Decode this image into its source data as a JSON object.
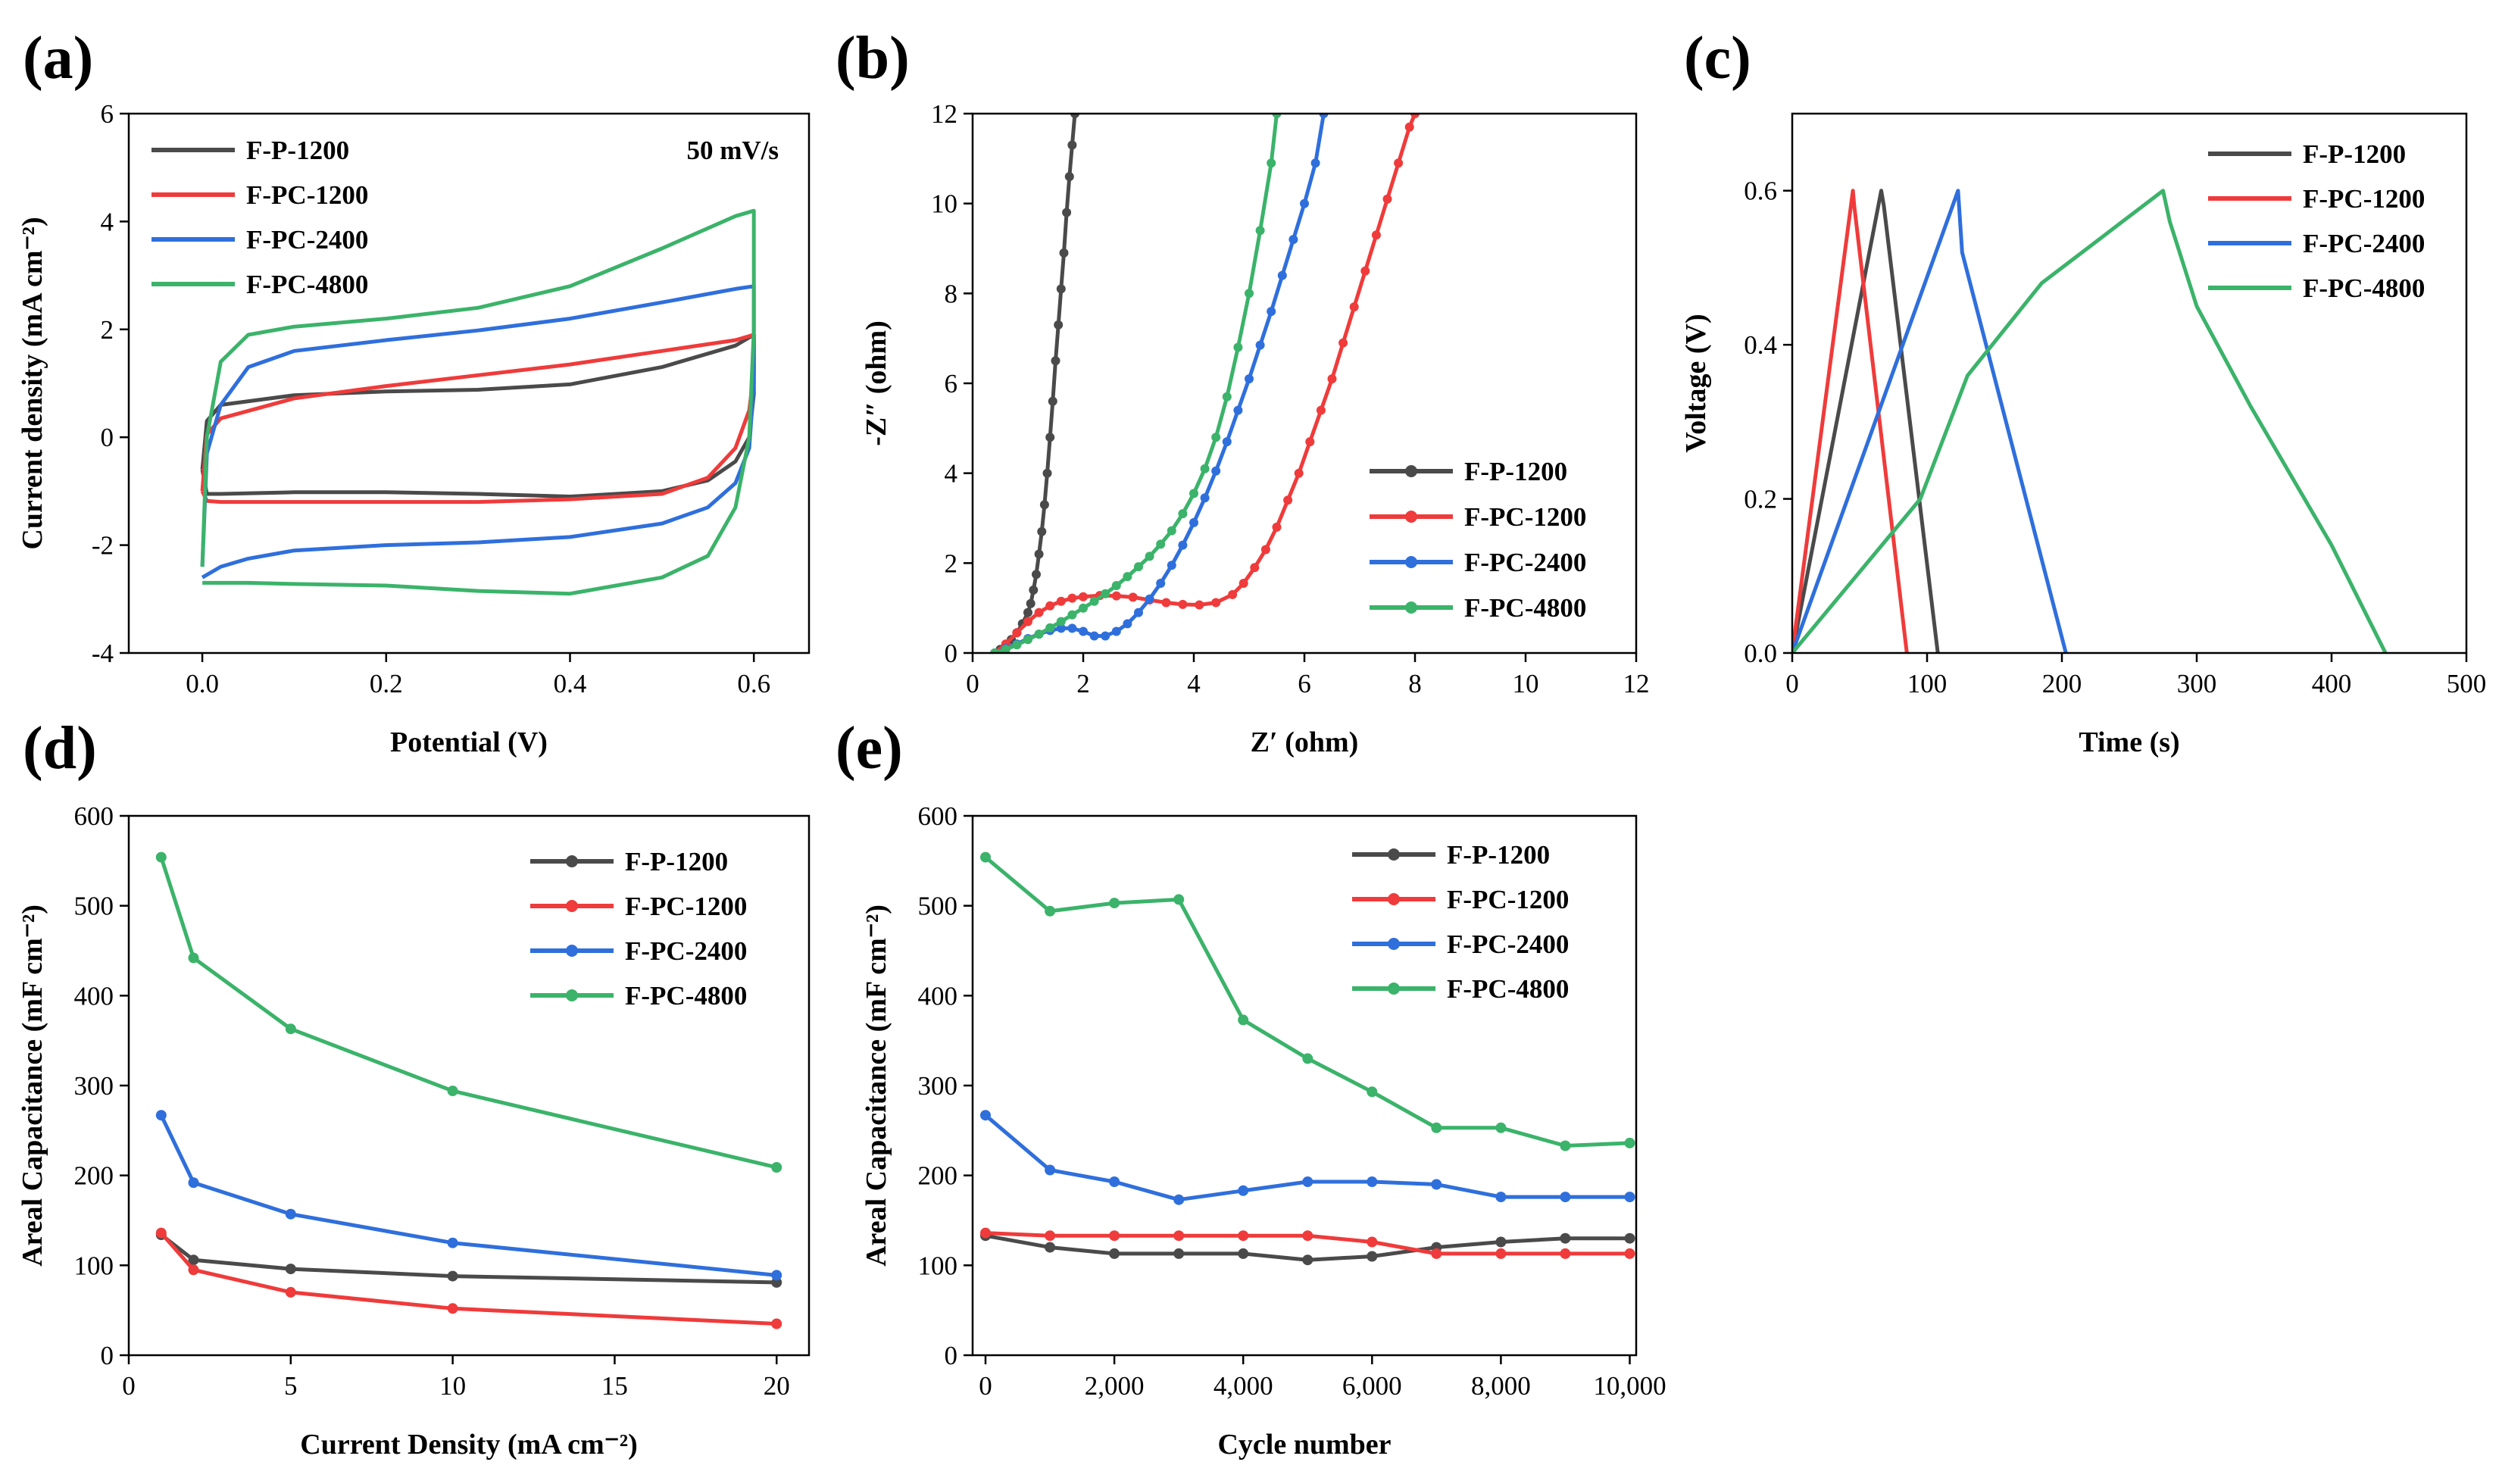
{
  "colors": {
    "F-P-1200": "#4a4a4a",
    "F-PC-1200": "#ef3b3b",
    "F-PC-2400": "#2f6fdc",
    "F-PC-4800": "#3bb36a"
  },
  "chart_data": [
    {
      "panel": "(a)",
      "type": "line",
      "title": "",
      "xlabel": "Potential (V)",
      "ylabel": "Current density (mA cm⁻²)",
      "xlim": [
        -0.08,
        0.66
      ],
      "ylim": [
        -4,
        6
      ],
      "xticks": [
        0.0,
        0.2,
        0.4,
        0.6
      ],
      "xtick_labels": [
        "0.0",
        "0.2",
        "0.4",
        "0.6"
      ],
      "yticks": [
        -4,
        -2,
        0,
        2,
        4,
        6
      ],
      "ytick_labels": [
        "-4",
        "-2",
        "0",
        "2",
        "4",
        "6"
      ],
      "annotation": "50 mV/s",
      "legend_position": "top-left",
      "series": [
        {
          "name": "F-P-1200",
          "x": [
            0.0,
            0.005,
            0.02,
            0.1,
            0.2,
            0.3,
            0.4,
            0.5,
            0.58,
            0.6,
            0.6,
            0.595,
            0.58,
            0.55,
            0.5,
            0.4,
            0.3,
            0.2,
            0.1,
            0.02,
            0.005,
            0.0
          ],
          "y": [
            -0.6,
            0.3,
            0.6,
            0.78,
            0.85,
            0.88,
            0.98,
            1.3,
            1.7,
            1.9,
            0.8,
            0.0,
            -0.45,
            -0.8,
            -1.0,
            -1.1,
            -1.05,
            -1.02,
            -1.02,
            -1.05,
            -1.05,
            -0.6
          ]
        },
        {
          "name": "F-PC-1200",
          "x": [
            0.0,
            0.005,
            0.02,
            0.1,
            0.2,
            0.3,
            0.4,
            0.5,
            0.58,
            0.6,
            0.6,
            0.595,
            0.58,
            0.55,
            0.5,
            0.4,
            0.3,
            0.2,
            0.1,
            0.02,
            0.005,
            0.0
          ],
          "y": [
            -1.0,
            0.05,
            0.35,
            0.72,
            0.95,
            1.15,
            1.35,
            1.6,
            1.8,
            1.9,
            1.2,
            0.5,
            -0.2,
            -0.75,
            -1.05,
            -1.15,
            -1.2,
            -1.2,
            -1.2,
            -1.2,
            -1.18,
            -1.0
          ]
        },
        {
          "name": "F-PC-2400",
          "x": [
            0.0,
            0.005,
            0.02,
            0.05,
            0.1,
            0.2,
            0.3,
            0.4,
            0.5,
            0.58,
            0.6,
            0.6,
            0.595,
            0.58,
            0.55,
            0.5,
            0.4,
            0.3,
            0.2,
            0.1,
            0.05,
            0.02,
            0.0
          ],
          "y": [
            -2.4,
            -0.3,
            0.6,
            1.3,
            1.6,
            1.8,
            1.98,
            2.2,
            2.5,
            2.75,
            2.8,
            1.0,
            -0.2,
            -0.85,
            -1.3,
            -1.6,
            -1.85,
            -1.95,
            -2.0,
            -2.1,
            -2.25,
            -2.4,
            -2.6
          ]
        },
        {
          "name": "F-PC-4800",
          "x": [
            0.0,
            0.005,
            0.02,
            0.05,
            0.1,
            0.2,
            0.3,
            0.4,
            0.5,
            0.58,
            0.6,
            0.6,
            0.595,
            0.58,
            0.55,
            0.5,
            0.4,
            0.3,
            0.2,
            0.1,
            0.05,
            0.02,
            0.0
          ],
          "y": [
            -2.4,
            0.0,
            1.4,
            1.9,
            2.05,
            2.2,
            2.4,
            2.8,
            3.5,
            4.1,
            4.2,
            2.0,
            0.0,
            -1.3,
            -2.2,
            -2.6,
            -2.9,
            -2.85,
            -2.75,
            -2.72,
            -2.7,
            -2.7,
            -2.7
          ]
        }
      ]
    },
    {
      "panel": "(b)",
      "type": "scatter",
      "title": "",
      "xlabel": "Z′ (ohm)",
      "ylabel": "-Z″ (ohm)",
      "xlim": [
        0,
        12
      ],
      "ylim": [
        0,
        12
      ],
      "xticks": [
        0,
        2,
        4,
        6,
        8,
        10,
        12
      ],
      "xtick_labels": [
        "0",
        "2",
        "4",
        "6",
        "8",
        "10",
        "12"
      ],
      "yticks": [
        0,
        2,
        4,
        6,
        8,
        10,
        12
      ],
      "ytick_labels": [
        "0",
        "2",
        "4",
        "6",
        "8",
        "10",
        "12"
      ],
      "legend_position": "bottom-right",
      "series": [
        {
          "name": "F-P-1200",
          "x": [
            0.4,
            0.5,
            0.6,
            0.7,
            0.8,
            0.9,
            1.0,
            1.05,
            1.1,
            1.15,
            1.2,
            1.25,
            1.3,
            1.35,
            1.4,
            1.45,
            1.5,
            1.55,
            1.6,
            1.65,
            1.7,
            1.75,
            1.8,
            1.85
          ],
          "y": [
            0.0,
            0.08,
            0.18,
            0.3,
            0.45,
            0.65,
            0.9,
            1.1,
            1.4,
            1.75,
            2.2,
            2.7,
            3.3,
            4.0,
            4.8,
            5.6,
            6.5,
            7.3,
            8.1,
            8.9,
            9.8,
            10.6,
            11.3,
            12.0
          ]
        },
        {
          "name": "F-PC-1200",
          "x": [
            0.4,
            0.6,
            0.8,
            1.0,
            1.2,
            1.4,
            1.6,
            1.8,
            2.0,
            2.3,
            2.6,
            2.9,
            3.2,
            3.5,
            3.8,
            4.1,
            4.4,
            4.7,
            4.9,
            5.1,
            5.3,
            5.5,
            5.7,
            5.9,
            6.1,
            6.3,
            6.5,
            6.7,
            6.9,
            7.1,
            7.3,
            7.5,
            7.7,
            7.9,
            8.0
          ],
          "y": [
            0.0,
            0.2,
            0.45,
            0.7,
            0.9,
            1.05,
            1.15,
            1.22,
            1.25,
            1.28,
            1.27,
            1.24,
            1.18,
            1.12,
            1.08,
            1.07,
            1.12,
            1.3,
            1.55,
            1.9,
            2.3,
            2.8,
            3.4,
            4.0,
            4.7,
            5.4,
            6.1,
            6.9,
            7.7,
            8.5,
            9.3,
            10.1,
            10.9,
            11.7,
            12.0
          ]
        },
        {
          "name": "F-PC-2400",
          "x": [
            0.4,
            0.6,
            0.8,
            1.0,
            1.2,
            1.4,
            1.6,
            1.8,
            2.0,
            2.2,
            2.4,
            2.6,
            2.8,
            3.0,
            3.2,
            3.4,
            3.6,
            3.8,
            4.0,
            4.2,
            4.4,
            4.6,
            4.8,
            5.0,
            5.2,
            5.4,
            5.6,
            5.8,
            6.0,
            6.2,
            6.35
          ],
          "y": [
            0.0,
            0.1,
            0.2,
            0.32,
            0.42,
            0.5,
            0.55,
            0.55,
            0.48,
            0.38,
            0.38,
            0.48,
            0.65,
            0.9,
            1.2,
            1.55,
            1.95,
            2.4,
            2.9,
            3.45,
            4.05,
            4.7,
            5.4,
            6.1,
            6.85,
            7.6,
            8.4,
            9.2,
            10.0,
            10.9,
            12.0
          ]
        },
        {
          "name": "F-PC-4800",
          "x": [
            0.4,
            0.6,
            0.8,
            1.0,
            1.2,
            1.4,
            1.6,
            1.8,
            2.0,
            2.2,
            2.4,
            2.6,
            2.8,
            3.0,
            3.2,
            3.4,
            3.6,
            3.8,
            4.0,
            4.2,
            4.4,
            4.6,
            4.8,
            5.0,
            5.2,
            5.4,
            5.5
          ],
          "y": [
            0.0,
            0.08,
            0.18,
            0.3,
            0.42,
            0.56,
            0.7,
            0.85,
            1.0,
            1.15,
            1.32,
            1.5,
            1.7,
            1.92,
            2.15,
            2.42,
            2.72,
            3.1,
            3.55,
            4.1,
            4.8,
            5.7,
            6.8,
            8.0,
            9.4,
            10.9,
            12.0
          ]
        }
      ]
    },
    {
      "panel": "(c)",
      "type": "line",
      "title": "",
      "xlabel": "Time (s)",
      "ylabel": "Voltage (V)",
      "xlim": [
        0,
        500
      ],
      "ylim": [
        0,
        0.7
      ],
      "xticks": [
        0,
        100,
        200,
        300,
        400,
        500
      ],
      "xtick_labels": [
        "0",
        "100",
        "200",
        "300",
        "400",
        "500"
      ],
      "yticks": [
        0.0,
        0.2,
        0.4,
        0.6
      ],
      "ytick_labels": [
        "0.0",
        "0.2",
        "0.4",
        "0.6"
      ],
      "legend_position": "top-right",
      "series": [
        {
          "name": "F-P-1200",
          "x": [
            0,
            66,
            68,
            108
          ],
          "y": [
            0,
            0.6,
            0.58,
            0
          ]
        },
        {
          "name": "F-PC-1200",
          "x": [
            0,
            45,
            46,
            85
          ],
          "y": [
            0,
            0.6,
            0.58,
            0
          ]
        },
        {
          "name": "F-PC-2400",
          "x": [
            0,
            123,
            126,
            203
          ],
          "y": [
            0,
            0.6,
            0.52,
            0
          ]
        },
        {
          "name": "F-PC-4800",
          "x": [
            0,
            95,
            130,
            185,
            230,
            275,
            280,
            300,
            340,
            400,
            440
          ],
          "y": [
            0,
            0.2,
            0.36,
            0.48,
            0.54,
            0.6,
            0.56,
            0.45,
            0.32,
            0.14,
            0
          ]
        }
      ]
    },
    {
      "panel": "(d)",
      "type": "line",
      "title": "",
      "xlabel": "Current Density (mA cm⁻²)",
      "ylabel": "Areal Capacitance (mF cm⁻²)",
      "xlim": [
        0,
        21
      ],
      "ylim": [
        0,
        600
      ],
      "xticks": [
        0,
        5,
        10,
        15,
        20
      ],
      "xtick_labels": [
        "0",
        "5",
        "10",
        "15",
        "20"
      ],
      "yticks": [
        0,
        100,
        200,
        300,
        400,
        500,
        600
      ],
      "ytick_labels": [
        "0",
        "100",
        "200",
        "300",
        "400",
        "500",
        "600"
      ],
      "legend_position": "top-right",
      "categories": [
        1,
        2,
        5,
        10,
        20
      ],
      "series": [
        {
          "name": "F-P-1200",
          "x": [
            1,
            2,
            5,
            10,
            20
          ],
          "values": [
            134,
            106,
            96,
            88,
            81
          ]
        },
        {
          "name": "F-PC-1200",
          "x": [
            1,
            2,
            5,
            10,
            20
          ],
          "values": [
            136,
            95,
            70,
            52,
            35
          ]
        },
        {
          "name": "F-PC-2400",
          "x": [
            1,
            2,
            5,
            10,
            20
          ],
          "values": [
            267,
            192,
            157,
            125,
            89
          ]
        },
        {
          "name": "F-PC-4800",
          "x": [
            1,
            2,
            5,
            10,
            20
          ],
          "values": [
            554,
            442,
            363,
            294,
            209
          ]
        }
      ]
    },
    {
      "panel": "(e)",
      "type": "line",
      "title": "",
      "xlabel": "Cycle number",
      "ylabel": "Areal Capacitance (mF cm⁻²)",
      "xlim": [
        -200,
        10100
      ],
      "ylim": [
        0,
        600
      ],
      "xticks": [
        0,
        2000,
        4000,
        6000,
        8000,
        10000
      ],
      "xtick_labels": [
        "0",
        "2,000",
        "4,000",
        "6,000",
        "8,000",
        "10,000"
      ],
      "yticks": [
        0,
        100,
        200,
        300,
        400,
        500,
        600
      ],
      "ytick_labels": [
        "0",
        "100",
        "200",
        "300",
        "400",
        "500",
        "600"
      ],
      "legend_position": "top-right",
      "series": [
        {
          "name": "F-P-1200",
          "x": [
            0,
            1000,
            2000,
            3000,
            4000,
            5000,
            6000,
            7000,
            8000,
            9000,
            10000
          ],
          "values": [
            133,
            120,
            113,
            113,
            113,
            106,
            110,
            120,
            126,
            130,
            130
          ]
        },
        {
          "name": "F-PC-1200",
          "x": [
            0,
            1000,
            2000,
            3000,
            4000,
            5000,
            6000,
            7000,
            8000,
            9000,
            10000
          ],
          "values": [
            136,
            133,
            133,
            133,
            133,
            133,
            126,
            113,
            113,
            113,
            113
          ]
        },
        {
          "name": "F-PC-2400",
          "x": [
            0,
            1000,
            2000,
            3000,
            4000,
            5000,
            6000,
            7000,
            8000,
            9000,
            10000
          ],
          "values": [
            267,
            206,
            193,
            173,
            183,
            193,
            193,
            190,
            176,
            176,
            176
          ]
        },
        {
          "name": "F-PC-4800",
          "x": [
            0,
            1000,
            2000,
            3000,
            4000,
            5000,
            6000,
            7000,
            8000,
            9000,
            10000
          ],
          "values": [
            554,
            494,
            503,
            507,
            373,
            330,
            293,
            253,
            253,
            233,
            236
          ]
        }
      ]
    }
  ]
}
